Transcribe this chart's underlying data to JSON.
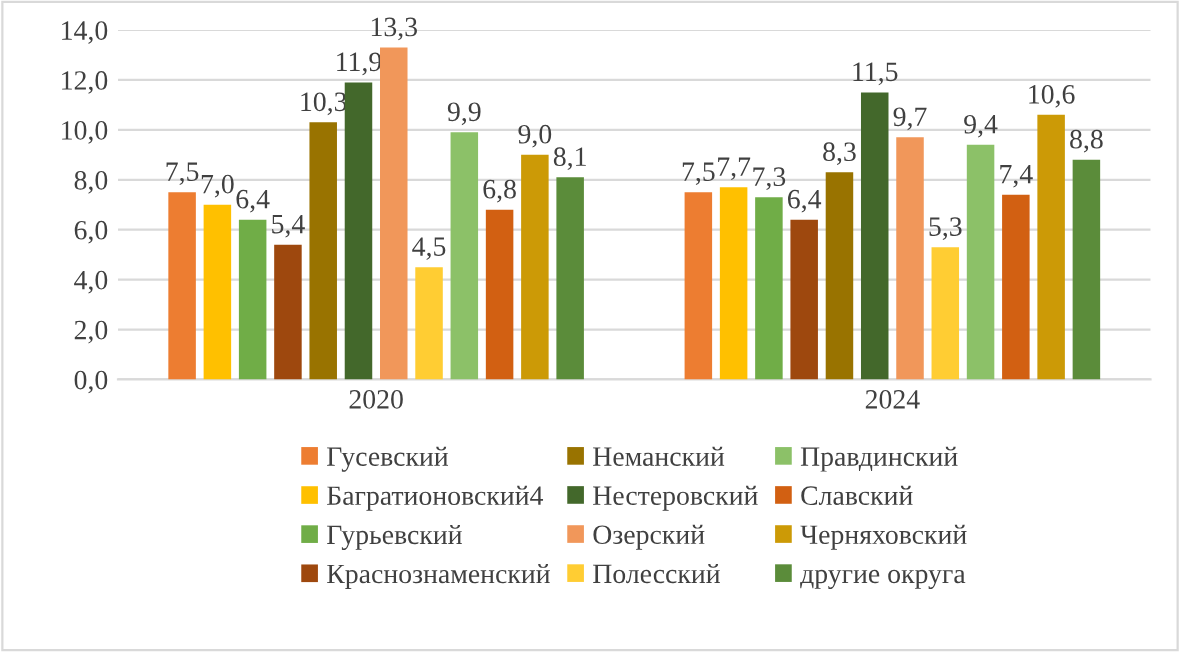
{
  "chart_data": {
    "type": "bar",
    "categories": [
      "2020",
      "2024"
    ],
    "series": [
      {
        "name": "Гусевский",
        "color": "#ed7d31",
        "values": [
          7.5,
          7.5
        ],
        "value_labels": [
          "7,5",
          "7,5"
        ]
      },
      {
        "name": "Багратионовский4",
        "color": "#ffc000",
        "values": [
          7.0,
          7.7
        ],
        "value_labels": [
          "7,0",
          "7,7"
        ]
      },
      {
        "name": "Гурьевский",
        "color": "#70ad47",
        "values": [
          6.4,
          7.3
        ],
        "value_labels": [
          "6,4",
          "7,3"
        ]
      },
      {
        "name": "Краснознаменский",
        "color": "#9e480e",
        "values": [
          5.4,
          6.4
        ],
        "value_labels": [
          "5,4",
          "6,4"
        ]
      },
      {
        "name": "Неманский",
        "color": "#997300",
        "values": [
          10.3,
          8.3
        ],
        "value_labels": [
          "10,3",
          "8,3"
        ]
      },
      {
        "name": "Нестеровский",
        "color": "#43682b",
        "values": [
          11.9,
          11.5
        ],
        "value_labels": [
          "11,9",
          "11,5"
        ]
      },
      {
        "name": "Озерский",
        "color": "#f1975a",
        "values": [
          13.3,
          9.7
        ],
        "value_labels": [
          "13,3",
          "9,7"
        ]
      },
      {
        "name": "Полесский",
        "color": "#ffcd33",
        "values": [
          4.5,
          5.3
        ],
        "value_labels": [
          "4,5",
          "5,3"
        ]
      },
      {
        "name": "Правдинский",
        "color": "#8cc168",
        "values": [
          9.9,
          9.4
        ],
        "value_labels": [
          "9,9",
          "9,4"
        ]
      },
      {
        "name": "Славский",
        "color": "#d26012",
        "values": [
          6.8,
          7.4
        ],
        "value_labels": [
          "6,8",
          "7,4"
        ]
      },
      {
        "name": "Черняховский",
        "color": "#cc9a06",
        "values": [
          9.0,
          10.6
        ],
        "value_labels": [
          "9,0",
          "10,6"
        ]
      },
      {
        "name": "другие округа",
        "color": "#5b8c3a",
        "values": [
          8.1,
          8.8
        ],
        "value_labels": [
          "8,1",
          "8,8"
        ]
      }
    ],
    "ylim": [
      0,
      14
    ],
    "yticks": [
      {
        "value": 0,
        "label": "0,0"
      },
      {
        "value": 2,
        "label": "2,0"
      },
      {
        "value": 4,
        "label": "4,0"
      },
      {
        "value": 6,
        "label": "6,0"
      },
      {
        "value": 8,
        "label": "8,0"
      },
      {
        "value": 10,
        "label": "10,0"
      },
      {
        "value": 12,
        "label": "12,0"
      },
      {
        "value": 14,
        "label": "14,0"
      }
    ],
    "grid": "y",
    "legend": "bottom"
  }
}
